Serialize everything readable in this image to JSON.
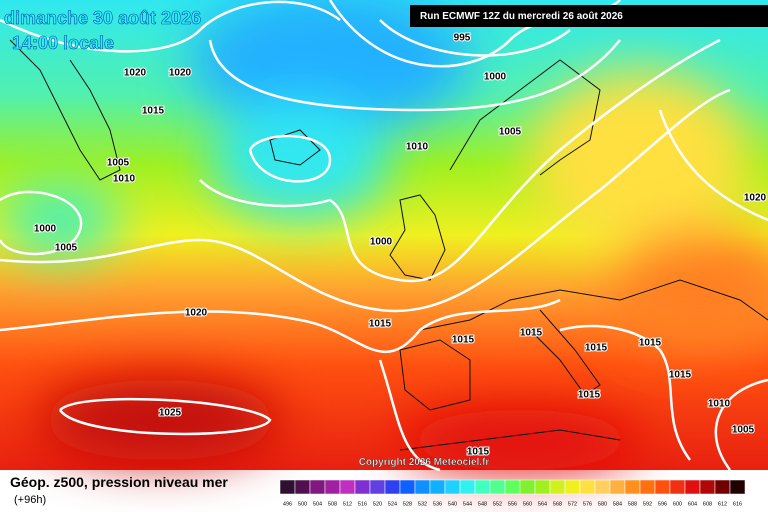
{
  "header": {
    "date": "dimanche 30 août 2026",
    "time": "14:00 locale",
    "run": "Run ECMWF 12Z du mercredi 26 août 2026"
  },
  "isobar_labels": [
    995,
    1000,
    1005,
    1010,
    1020,
    1020,
    1015,
    1005,
    1010,
    1000,
    1005,
    1000,
    1020,
    1020,
    1015,
    1015,
    1015,
    1015,
    1015,
    1015,
    1015,
    1010,
    1005,
    1025,
    1015
  ],
  "copyright": "Copyright 2026 Meteociel.fr",
  "footer": {
    "title": "Géop. z500, pression niveau mer",
    "lead": "(+96h)"
  },
  "scale": {
    "values": [
      496,
      500,
      504,
      508,
      512,
      516,
      520,
      524,
      528,
      532,
      536,
      540,
      544,
      548,
      552,
      556,
      560,
      564,
      568,
      572,
      576,
      580,
      584,
      588,
      592,
      596,
      600,
      604,
      608,
      612,
      616
    ],
    "colors": [
      "#301030",
      "#501050",
      "#801880",
      "#a020a0",
      "#c030c0",
      "#8030d0",
      "#6040e0",
      "#3040f0",
      "#1060ff",
      "#1090ff",
      "#10b0ff",
      "#20d0ff",
      "#30f0f0",
      "#40ffc0",
      "#50ff90",
      "#60ff60",
      "#80f030",
      "#a0f020",
      "#d0f020",
      "#f0f020",
      "#ffe040",
      "#ffd060",
      "#ffb040",
      "#ff9020",
      "#ff7010",
      "#ff5010",
      "#f03010",
      "#e01010",
      "#b00808",
      "#700000",
      "#200000"
    ]
  }
}
